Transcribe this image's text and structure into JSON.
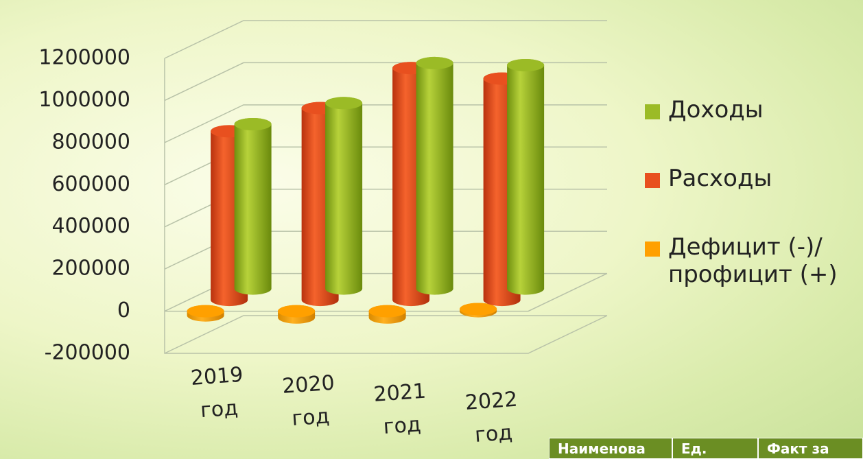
{
  "chart_data": {
    "type": "bar3d",
    "categories": [
      "2019 год",
      "2020 год",
      "2021 год",
      "2022 год"
    ],
    "series": [
      {
        "name": "Доходы",
        "color": "#9bbb26",
        "values": [
          780000,
          880000,
          1070000,
          1060000
        ]
      },
      {
        "name": "Расходы",
        "color": "#e8501f",
        "values": [
          800000,
          910000,
          1100000,
          1050000
        ]
      },
      {
        "name": "Дефицит (-)/ профицит (+)",
        "color": "#ffa000",
        "values": [
          -20000,
          -30000,
          -30000,
          10000
        ]
      }
    ],
    "ylim": [
      -200000,
      1200000
    ],
    "yticks": [
      -200000,
      0,
      200000,
      400000,
      600000,
      800000,
      1000000,
      1200000
    ],
    "grid": true
  },
  "table": {
    "header": [
      "Наименова",
      "Ед.",
      "Факт за"
    ]
  }
}
